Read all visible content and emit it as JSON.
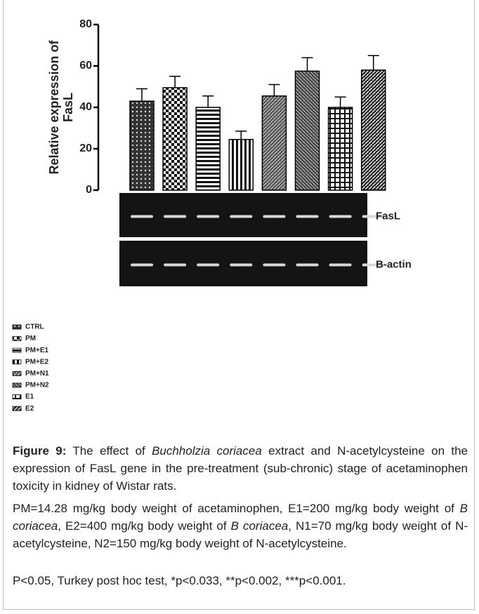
{
  "chart_data": {
    "type": "bar",
    "ylabel": [
      "Relative expression of",
      "FasL"
    ],
    "categories": [
      "CTRL",
      "PM",
      "PM+E1",
      "PM+E2",
      "PM+N1",
      "PM+N2",
      "E1",
      "E2"
    ],
    "values": [
      43,
      49.5,
      40,
      24.5,
      45.5,
      57.5,
      40,
      58
    ],
    "errors": [
      6,
      5.5,
      5.5,
      4,
      5.5,
      6.5,
      5,
      7
    ],
    "ylim": [
      0,
      80
    ],
    "yticks": [
      0,
      20,
      40,
      60,
      80
    ],
    "gel_labels": [
      "FasL",
      "B-actin"
    ]
  },
  "caption": {
    "label": "Figure 9:",
    "segments": [
      " The effect of ",
      "Buchholzia coriacea",
      " extract and N-acetylcysteine on the expression of FasL gene in the pre-treatment (sub-chronic) stage of acetaminophen toxicity in kidney of Wistar rats."
    ]
  },
  "notes": {
    "segments": [
      "PM=14.28 mg/kg body weight of acetaminophen, E1=200 mg/kg body weight of ",
      "B coriacea",
      ", E2=400 mg/kg body weight of ",
      "B coriacea",
      ", N1=70 mg/kg body weight of N-acetylcysteine, N2=150 mg/kg body weight of N-acetylcysteine."
    ]
  },
  "stats": "P<0.05, Turkey post hoc test, *p<0.033, **p<0.002, ***p<0.001."
}
